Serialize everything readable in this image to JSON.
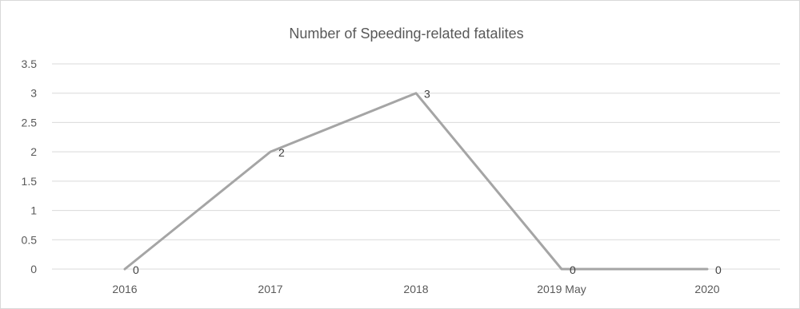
{
  "chart_data": {
    "type": "line",
    "title": "Number  of Speeding-related fatalites",
    "xlabel": "",
    "ylabel": "",
    "categories": [
      "2016",
      "2017",
      "2018",
      "2019 May",
      "2020"
    ],
    "series": [
      {
        "values": [
          0,
          2,
          3,
          0,
          0
        ],
        "color": "#a5a5a5"
      }
    ],
    "ylim": [
      0,
      3.5
    ],
    "yticks": [
      "0",
      "0.5",
      "1",
      "1.5",
      "2",
      "2.5",
      "3",
      "3.5"
    ],
    "data_labels": [
      "0",
      "2",
      "3",
      "0",
      "0"
    ],
    "grid": true,
    "legend": "none"
  }
}
